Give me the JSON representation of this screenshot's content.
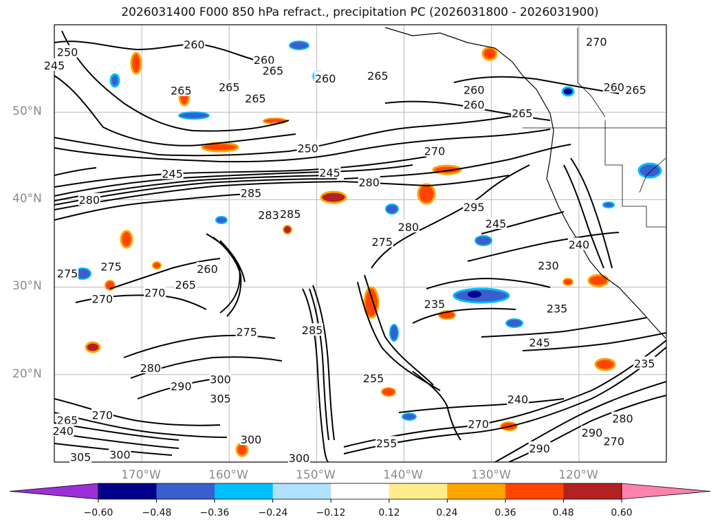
{
  "title": "2026031400 F000 850 hPa refract., precipitation PC (2026031800 - 2026031900)",
  "map": {
    "extent": {
      "lon_min": -180,
      "lon_max": -110,
      "lat_min": 10,
      "lat_max": 60
    },
    "lat_labels": [
      {
        "lat": 50,
        "text": "50°N"
      },
      {
        "lat": 40,
        "text": "40°N"
      },
      {
        "lat": 30,
        "text": "30°N"
      },
      {
        "lat": 20,
        "text": "20°N"
      }
    ],
    "lon_labels": [
      {
        "lon": -170,
        "text": "170°W"
      },
      {
        "lon": -160,
        "text": "160°W"
      },
      {
        "lon": -150,
        "text": "150°W"
      },
      {
        "lon": -140,
        "text": "140°W"
      },
      {
        "lon": -130,
        "text": "130°W"
      },
      {
        "lon": -120,
        "text": "120°W"
      }
    ],
    "gridlines": true,
    "contour_labels": [
      {
        "lon": -178.5,
        "lat": 56.8,
        "text": "250"
      },
      {
        "lon": -164,
        "lat": 57.7,
        "text": "260"
      },
      {
        "lon": -156,
        "lat": 55.9,
        "text": "260"
      },
      {
        "lon": -155,
        "lat": 54.7,
        "text": "265"
      },
      {
        "lon": -149,
        "lat": 53.8,
        "text": "260"
      },
      {
        "lon": -160,
        "lat": 52.8,
        "text": "265"
      },
      {
        "lon": -157,
        "lat": 51.5,
        "text": "265"
      },
      {
        "lon": -165.5,
        "lat": 52.4,
        "text": "265"
      },
      {
        "lon": -143,
        "lat": 54.1,
        "text": "265"
      },
      {
        "lon": -132,
        "lat": 52.5,
        "text": "260"
      },
      {
        "lon": -132,
        "lat": 50.8,
        "text": "260"
      },
      {
        "lon": -126.5,
        "lat": 49.8,
        "text": "265"
      },
      {
        "lon": -118,
        "lat": 58.0,
        "text": "270"
      },
      {
        "lon": -113.5,
        "lat": 52.5,
        "text": "265"
      },
      {
        "lon": -116,
        "lat": 52.8,
        "text": "260"
      },
      {
        "lon": -180,
        "lat": 55.3,
        "text": "245"
      },
      {
        "lon": -151,
        "lat": 45.8,
        "text": "250"
      },
      {
        "lon": -166.5,
        "lat": 42.9,
        "text": "245"
      },
      {
        "lon": -148.5,
        "lat": 43.0,
        "text": "245"
      },
      {
        "lon": -136.5,
        "lat": 45.5,
        "text": "270"
      },
      {
        "lon": -144,
        "lat": 41.9,
        "text": "280"
      },
      {
        "lon": -176,
        "lat": 39.9,
        "text": "280"
      },
      {
        "lon": -157.5,
        "lat": 40.7,
        "text": "285"
      },
      {
        "lon": -153,
        "lat": 38.3,
        "text": "285"
      },
      {
        "lon": -155.5,
        "lat": 38.2,
        "text": "283"
      },
      {
        "lon": -132,
        "lat": 39.1,
        "text": "295"
      },
      {
        "lon": -129.5,
        "lat": 37.2,
        "text": "245"
      },
      {
        "lon": -178.5,
        "lat": 31.5,
        "text": "275"
      },
      {
        "lon": -173.5,
        "lat": 32.3,
        "text": "275"
      },
      {
        "lon": -165,
        "lat": 30.2,
        "text": "265"
      },
      {
        "lon": -162.5,
        "lat": 32.0,
        "text": "260"
      },
      {
        "lon": -168.5,
        "lat": 29.3,
        "text": "270"
      },
      {
        "lon": -174.5,
        "lat": 28.6,
        "text": "270"
      },
      {
        "lon": -123.5,
        "lat": 32.4,
        "text": "230"
      },
      {
        "lon": -120,
        "lat": 34.8,
        "text": "240"
      },
      {
        "lon": -136.5,
        "lat": 28.0,
        "text": "235"
      },
      {
        "lon": -122.5,
        "lat": 27.5,
        "text": "235"
      },
      {
        "lon": -124.5,
        "lat": 23.6,
        "text": "245"
      },
      {
        "lon": -158,
        "lat": 24.8,
        "text": "275"
      },
      {
        "lon": -150.5,
        "lat": 25.0,
        "text": "285"
      },
      {
        "lon": -169,
        "lat": 20.7,
        "text": "280"
      },
      {
        "lon": -165.5,
        "lat": 18.6,
        "text": "290"
      },
      {
        "lon": -161,
        "lat": 19.4,
        "text": "300"
      },
      {
        "lon": -161,
        "lat": 17.2,
        "text": "305"
      },
      {
        "lon": -143.5,
        "lat": 19.5,
        "text": "255"
      },
      {
        "lon": -127,
        "lat": 17.1,
        "text": "240"
      },
      {
        "lon": -112.5,
        "lat": 21.2,
        "text": "235"
      },
      {
        "lon": -157.5,
        "lat": 12.5,
        "text": "300"
      },
      {
        "lon": -152,
        "lat": 10.4,
        "text": "300"
      },
      {
        "lon": -177,
        "lat": 10.5,
        "text": "305"
      },
      {
        "lon": -172.5,
        "lat": 10.8,
        "text": "300"
      },
      {
        "lon": -178.5,
        "lat": 14.7,
        "text": "265"
      },
      {
        "lon": -174.5,
        "lat": 15.3,
        "text": "270"
      },
      {
        "lon": -179,
        "lat": 13.5,
        "text": "240"
      },
      {
        "lon": -142,
        "lat": 12.1,
        "text": "255"
      },
      {
        "lon": -124.5,
        "lat": 11.5,
        "text": "290"
      },
      {
        "lon": -131.5,
        "lat": 14.3,
        "text": "270"
      },
      {
        "lon": -115,
        "lat": 14.9,
        "text": "280"
      },
      {
        "lon": -116,
        "lat": 12.3,
        "text": "270"
      },
      {
        "lon": -118.5,
        "lat": 13.3,
        "text": "290"
      },
      {
        "lon": -142.5,
        "lat": 35.1,
        "text": "275"
      },
      {
        "lon": -139.5,
        "lat": 36.8,
        "text": "280"
      }
    ]
  },
  "colorbar": {
    "colors": [
      "#9b30d8",
      "#00008b",
      "#3a5fcd",
      "#00bfff",
      "#b0e2ff",
      "#ffffff",
      "#ffec8b",
      "#ffa500",
      "#ff4500",
      "#b22222",
      "#ff82ab"
    ],
    "ticks": [
      "−0.60",
      "−0.48",
      "−0.36",
      "−0.24",
      "−0.12",
      "0.12",
      "0.24",
      "0.36",
      "0.48",
      "0.60"
    ]
  }
}
